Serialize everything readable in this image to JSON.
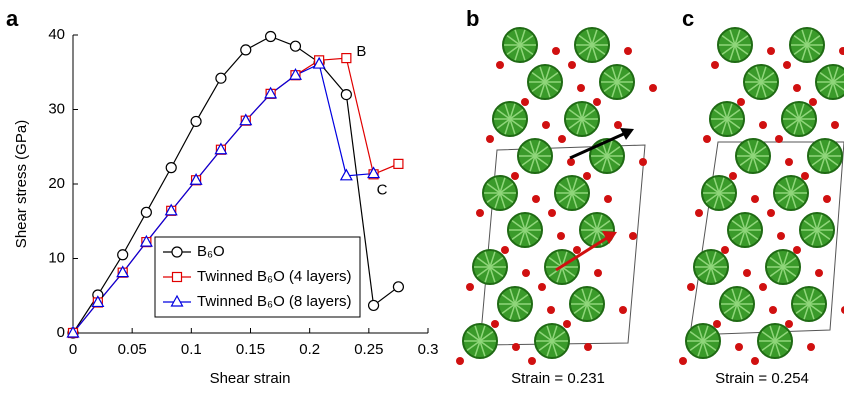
{
  "chart_data": {
    "type": "line",
    "panel_label": "a",
    "xlabel": "Shear strain",
    "ylabel": "Shear stress (GPa)",
    "x": [
      0,
      0.021,
      0.042,
      0.062,
      0.083,
      0.104,
      0.125,
      0.146,
      0.167,
      0.188,
      0.208,
      0.231,
      0.254,
      0.275
    ],
    "series": [
      {
        "name": "B₆O",
        "color": "#000000",
        "marker": "circle",
        "values": [
          0,
          5.1,
          10.5,
          16.2,
          22.2,
          28.4,
          34.2,
          38.0,
          39.8,
          38.5,
          36.3,
          32.0,
          3.7,
          6.2
        ]
      },
      {
        "name": "Twinned B₆O (4 layers)",
        "color": "#e00000",
        "marker": "square",
        "values": [
          0,
          4.1,
          8.1,
          12.2,
          16.4,
          20.5,
          24.6,
          28.5,
          32.1,
          34.6,
          36.6,
          36.9,
          21.3,
          22.7
        ]
      },
      {
        "name": "Twinned B₆O (8 layers)",
        "color": "#0000e0",
        "marker": "triangle",
        "values": [
          0,
          4.1,
          8.1,
          12.2,
          16.4,
          20.5,
          24.6,
          28.5,
          32.1,
          34.6,
          36.1,
          21.1,
          21.4,
          null
        ]
      }
    ],
    "annotations": [
      "B",
      "C"
    ],
    "xlim": [
      0,
      0.3
    ],
    "xticks": [
      0,
      0.05,
      0.1,
      0.15,
      0.2,
      0.25,
      0.3
    ],
    "ylim": [
      0,
      40
    ],
    "yticks": [
      0,
      10,
      20,
      30,
      40
    ]
  },
  "panels": {
    "b": {
      "label": "b",
      "caption": "Strain = 0.231"
    },
    "c": {
      "label": "c",
      "caption": "Strain = 0.254"
    }
  }
}
